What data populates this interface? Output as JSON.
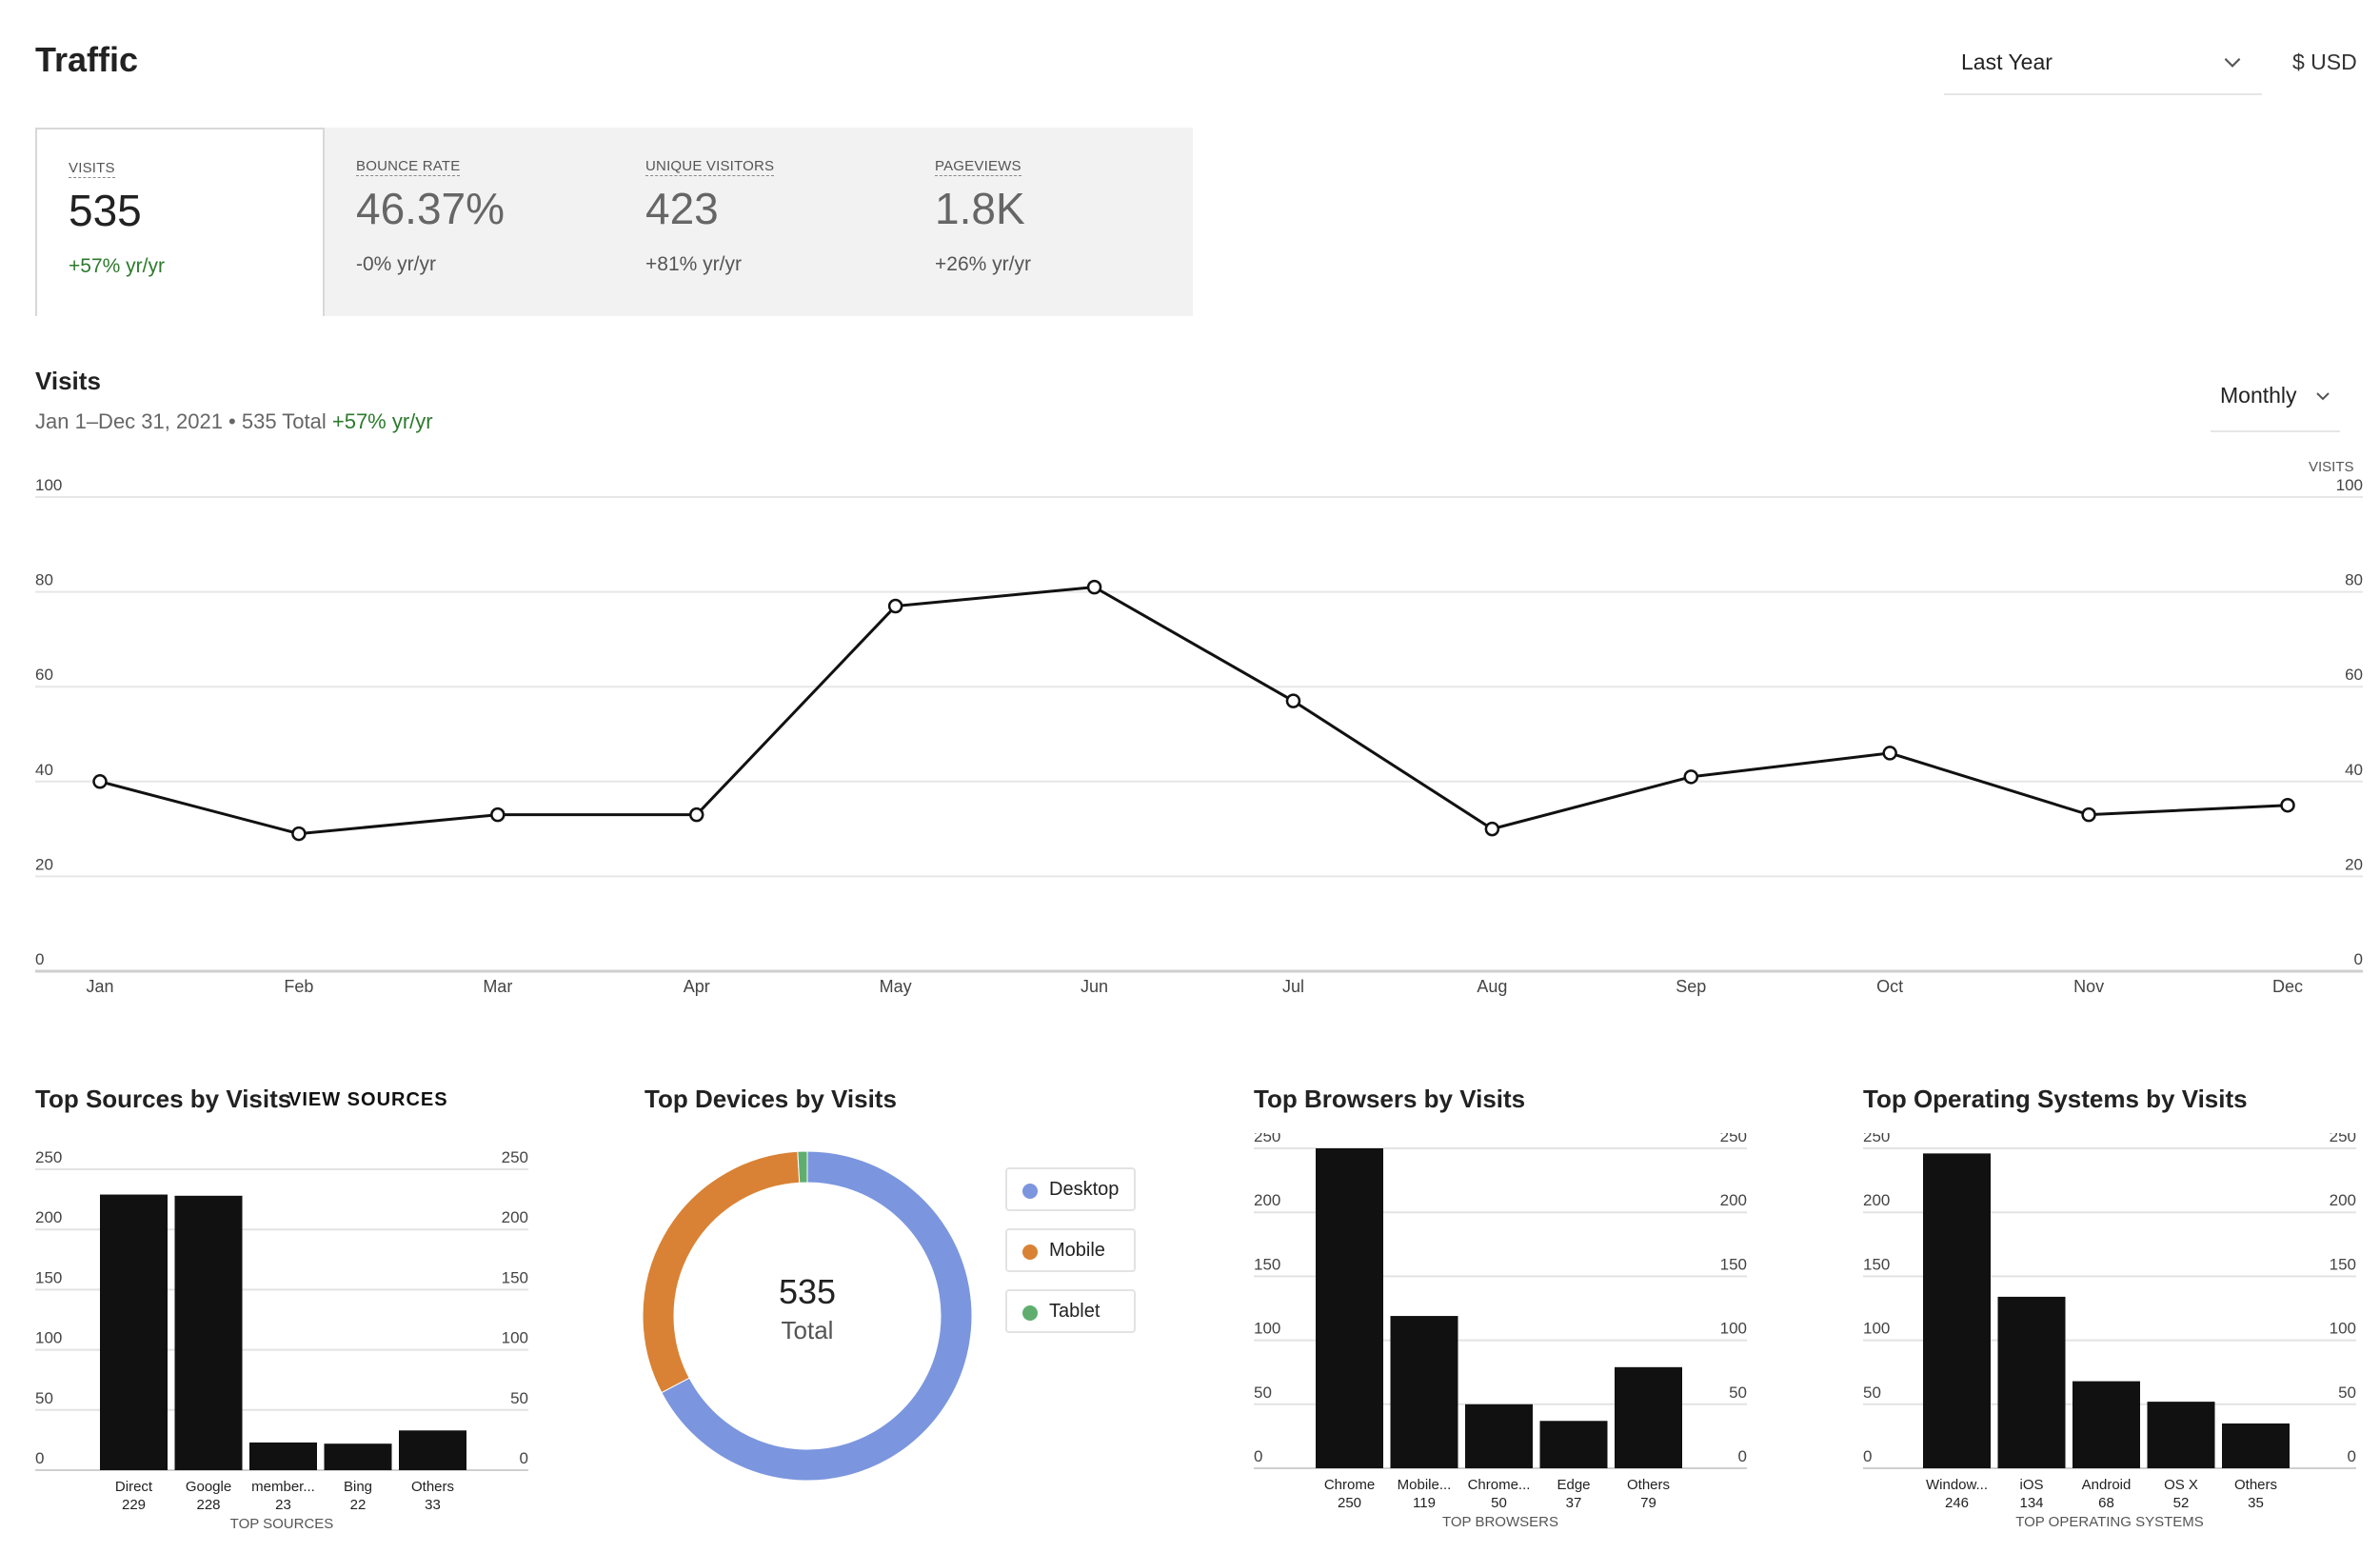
{
  "header": {
    "title": "Traffic",
    "range_label": "Last Year",
    "currency": "$ USD"
  },
  "kpis": [
    {
      "label": "VISITS",
      "value": "535",
      "change": "+57% yr/yr",
      "active": true
    },
    {
      "label": "BOUNCE RATE",
      "value": "46.37%",
      "change": "-0% yr/yr",
      "active": false
    },
    {
      "label": "UNIQUE VISITORS",
      "value": "423",
      "change": "+81% yr/yr",
      "active": false
    },
    {
      "label": "PAGEVIEWS",
      "value": "1.8K",
      "change": "+26% yr/yr",
      "active": false
    }
  ],
  "visits_section": {
    "title": "Visits",
    "subtitle_prefix": "Jan 1–Dec 31, 2021 • 535 Total ",
    "subtitle_change": "+57% yr/yr",
    "period_label": "Monthly",
    "right_axis_title": "VISITS"
  },
  "panels": {
    "sources_title": "Top Sources by Visits",
    "view_sources_label": "VIEW SOURCES",
    "devices_title": "Top Devices by Visits",
    "browsers_title": "Top Browsers by Visits",
    "os_title": "Top Operating Systems by Visits"
  },
  "devices_legend": [
    {
      "label": "Desktop",
      "color": "#7b96de"
    },
    {
      "label": "Mobile",
      "color": "#d98235"
    },
    {
      "label": "Tablet",
      "color": "#5fae70"
    }
  ],
  "donut_center": {
    "value": "535",
    "label": "Total"
  },
  "colors": {
    "accent_green": "#2d7a2d",
    "bar": "#111111",
    "line": "#111111"
  },
  "icons": {
    "range_chevron": "chevron-down-icon",
    "period_chevron": "chevron-down-icon"
  },
  "chart_data": [
    {
      "type": "line",
      "x": [
        "Jan",
        "Feb",
        "Mar",
        "Apr",
        "May",
        "Jun",
        "Jul",
        "Aug",
        "Sep",
        "Oct",
        "Nov",
        "Dec"
      ],
      "series": [
        {
          "values": [
            40,
            29,
            33,
            33,
            77,
            81,
            57,
            30,
            41,
            46,
            33,
            35
          ]
        }
      ],
      "yticks": [
        0,
        20,
        40,
        60,
        80,
        100
      ],
      "ylim": [
        0,
        100
      ],
      "grid": true
    },
    {
      "type": "bar",
      "categories": [
        "Direct",
        "Google",
        "member...",
        "Bing",
        "Others"
      ],
      "values": [
        229,
        228,
        23,
        22,
        33
      ],
      "value_labels": [
        "229",
        "228",
        "23",
        "22",
        "33"
      ],
      "xlabel": "TOP SOURCES",
      "yticks": [
        0,
        50,
        100,
        150,
        200,
        250
      ],
      "ylim": [
        0,
        250
      ],
      "grid": true
    },
    {
      "type": "pie",
      "categories": [
        "Desktop",
        "Mobile",
        "Tablet"
      ],
      "values": [
        360,
        170,
        5
      ],
      "colors": [
        "#7b96de",
        "#d98235",
        "#5fae70"
      ]
    },
    {
      "type": "bar",
      "categories": [
        "Chrome",
        "Mobile...",
        "Chrome...",
        "Edge",
        "Others"
      ],
      "values": [
        250,
        119,
        50,
        37,
        79
      ],
      "value_labels": [
        "250",
        "119",
        "50",
        "37",
        "79"
      ],
      "xlabel": "TOP BROWSERS",
      "yticks": [
        0,
        50,
        100,
        150,
        200,
        250
      ],
      "ylim": [
        0,
        250
      ],
      "grid": true
    },
    {
      "type": "bar",
      "categories": [
        "Window...",
        "iOS",
        "Android",
        "OS X",
        "Others"
      ],
      "values": [
        246,
        134,
        68,
        52,
        35
      ],
      "value_labels": [
        "246",
        "134",
        "68",
        "52",
        "35"
      ],
      "xlabel": "TOP OPERATING SYSTEMS",
      "yticks": [
        0,
        50,
        100,
        150,
        200,
        250
      ],
      "ylim": [
        0,
        250
      ],
      "grid": true
    }
  ]
}
